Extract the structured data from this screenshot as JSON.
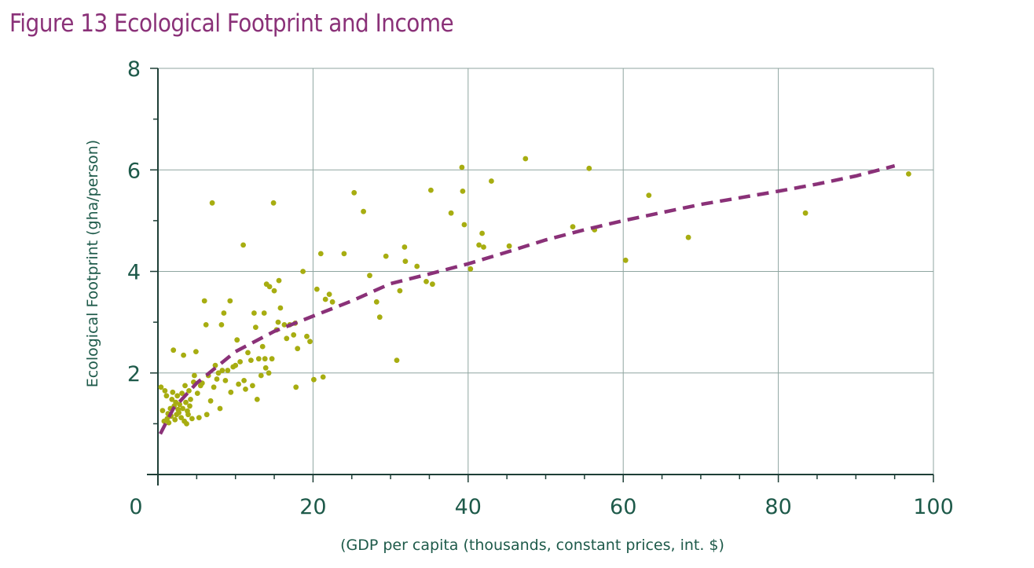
{
  "figure": {
    "title": "Figure 13 Ecological Footprint and Income"
  },
  "colors": {
    "title": "#8a3178",
    "points": "#a7ad11",
    "trend": "#8a3178",
    "axis": "#1e3f37",
    "grid": "#8fa6a0",
    "text": "#1e5a4a"
  },
  "chart_data": {
    "type": "scatter",
    "title": "Figure 13 Ecological Footprint and Income",
    "xlabel": "(GDP per capita (thousands, constant prices, int. $)",
    "ylabel": "Ecological Footprint (gha/person)",
    "xlim": [
      0,
      100
    ],
    "ylim": [
      0,
      8
    ],
    "x_ticks": [
      0,
      20,
      40,
      60,
      80,
      100
    ],
    "y_ticks": [
      2,
      4,
      6,
      8
    ],
    "x_tick_labels": [
      "0",
      "20",
      "40",
      "60",
      "80",
      "100"
    ],
    "y_tick_labels": [
      "2",
      "4",
      "6",
      "8"
    ],
    "grid": true,
    "points": [
      [
        0.4,
        1.72
      ],
      [
        0.6,
        1.26
      ],
      [
        0.8,
        1.05
      ],
      [
        0.9,
        1.65
      ],
      [
        1.1,
        1.55
      ],
      [
        1.2,
        1.1
      ],
      [
        1.3,
        1.2
      ],
      [
        1.4,
        1.02
      ],
      [
        1.6,
        1.3
      ],
      [
        1.7,
        1.15
      ],
      [
        1.8,
        1.48
      ],
      [
        1.9,
        1.62
      ],
      [
        2.0,
        2.45
      ],
      [
        2.1,
        1.35
      ],
      [
        2.2,
        1.08
      ],
      [
        2.3,
        1.42
      ],
      [
        2.4,
        1.18
      ],
      [
        2.5,
        1.55
      ],
      [
        2.6,
        1.28
      ],
      [
        2.7,
        1.22
      ],
      [
        2.8,
        1.38
      ],
      [
        3.0,
        1.12
      ],
      [
        3.1,
        1.6
      ],
      [
        3.2,
        1.3
      ],
      [
        3.3,
        2.35
      ],
      [
        3.4,
        1.05
      ],
      [
        3.5,
        1.75
      ],
      [
        3.6,
        1.42
      ],
      [
        3.7,
        1.0
      ],
      [
        3.8,
        1.25
      ],
      [
        3.9,
        1.18
      ],
      [
        4.0,
        1.65
      ],
      [
        4.1,
        1.35
      ],
      [
        4.2,
        1.48
      ],
      [
        4.4,
        1.1
      ],
      [
        4.6,
        1.82
      ],
      [
        4.7,
        1.95
      ],
      [
        4.9,
        2.42
      ],
      [
        5.1,
        1.6
      ],
      [
        5.3,
        1.12
      ],
      [
        5.5,
        1.75
      ],
      [
        5.7,
        1.8
      ],
      [
        6.0,
        3.42
      ],
      [
        6.2,
        2.95
      ],
      [
        6.3,
        1.18
      ],
      [
        6.5,
        1.95
      ],
      [
        6.8,
        1.45
      ],
      [
        7.0,
        5.35
      ],
      [
        7.2,
        1.72
      ],
      [
        7.4,
        2.15
      ],
      [
        7.6,
        1.88
      ],
      [
        7.8,
        2.0
      ],
      [
        8.0,
        1.3
      ],
      [
        8.2,
        2.95
      ],
      [
        8.3,
        2.05
      ],
      [
        8.5,
        3.18
      ],
      [
        8.7,
        1.85
      ],
      [
        9.0,
        2.05
      ],
      [
        9.3,
        3.42
      ],
      [
        9.4,
        1.62
      ],
      [
        9.7,
        2.12
      ],
      [
        10.0,
        2.15
      ],
      [
        10.2,
        2.65
      ],
      [
        10.4,
        1.78
      ],
      [
        10.6,
        2.22
      ],
      [
        11.0,
        4.52
      ],
      [
        11.1,
        1.85
      ],
      [
        11.3,
        1.68
      ],
      [
        11.6,
        2.4
      ],
      [
        12.0,
        2.25
      ],
      [
        12.2,
        1.75
      ],
      [
        12.4,
        3.18
      ],
      [
        12.6,
        2.9
      ],
      [
        12.8,
        1.48
      ],
      [
        13.0,
        2.28
      ],
      [
        13.3,
        1.95
      ],
      [
        13.5,
        2.52
      ],
      [
        13.7,
        3.18
      ],
      [
        13.8,
        2.28
      ],
      [
        13.9,
        2.1
      ],
      [
        14.0,
        3.75
      ],
      [
        14.3,
        2.0
      ],
      [
        14.4,
        3.7
      ],
      [
        14.7,
        2.28
      ],
      [
        14.9,
        5.35
      ],
      [
        15.0,
        3.62
      ],
      [
        15.3,
        2.85
      ],
      [
        15.5,
        3.0
      ],
      [
        15.6,
        3.82
      ],
      [
        15.8,
        3.28
      ],
      [
        16.3,
        2.95
      ],
      [
        16.6,
        2.68
      ],
      [
        17.0,
        2.95
      ],
      [
        17.5,
        2.75
      ],
      [
        17.7,
        2.98
      ],
      [
        17.8,
        1.72
      ],
      [
        18.0,
        2.48
      ],
      [
        18.7,
        4.0
      ],
      [
        19.2,
        2.72
      ],
      [
        19.6,
        2.62
      ],
      [
        20.1,
        1.87
      ],
      [
        20.5,
        3.65
      ],
      [
        21.0,
        4.35
      ],
      [
        21.3,
        1.92
      ],
      [
        21.6,
        3.45
      ],
      [
        22.1,
        3.55
      ],
      [
        22.5,
        3.4
      ],
      [
        24.0,
        4.35
      ],
      [
        25.3,
        5.55
      ],
      [
        26.5,
        5.18
      ],
      [
        27.3,
        3.92
      ],
      [
        28.2,
        3.4
      ],
      [
        28.6,
        3.1
      ],
      [
        29.4,
        4.3
      ],
      [
        30.8,
        2.25
      ],
      [
        31.2,
        3.62
      ],
      [
        31.8,
        4.48
      ],
      [
        31.9,
        4.2
      ],
      [
        33.4,
        4.1
      ],
      [
        34.6,
        3.8
      ],
      [
        35.2,
        5.6
      ],
      [
        35.4,
        3.75
      ],
      [
        37.8,
        5.15
      ],
      [
        39.2,
        6.05
      ],
      [
        39.3,
        5.58
      ],
      [
        39.5,
        4.92
      ],
      [
        40.3,
        4.05
      ],
      [
        41.4,
        4.52
      ],
      [
        41.8,
        4.75
      ],
      [
        42.0,
        4.48
      ],
      [
        43.0,
        5.78
      ],
      [
        45.3,
        4.5
      ],
      [
        47.4,
        6.22
      ],
      [
        53.5,
        4.88
      ],
      [
        55.6,
        6.03
      ],
      [
        56.3,
        4.82
      ],
      [
        60.3,
        4.22
      ],
      [
        63.3,
        5.5
      ],
      [
        68.4,
        4.67
      ],
      [
        83.5,
        5.15
      ],
      [
        96.8,
        5.92
      ]
    ],
    "trend": {
      "style": "dashed",
      "points": [
        [
          0.3,
          0.8
        ],
        [
          2,
          1.3
        ],
        [
          5,
          1.8
        ],
        [
          10,
          2.42
        ],
        [
          15,
          2.82
        ],
        [
          20,
          3.12
        ],
        [
          25,
          3.42
        ],
        [
          30,
          3.76
        ],
        [
          35,
          3.95
        ],
        [
          40,
          4.15
        ],
        [
          45,
          4.38
        ],
        [
          50,
          4.62
        ],
        [
          55,
          4.82
        ],
        [
          60,
          5.0
        ],
        [
          65,
          5.16
        ],
        [
          70,
          5.32
        ],
        [
          75,
          5.45
        ],
        [
          80,
          5.58
        ],
        [
          85,
          5.72
        ],
        [
          90,
          5.88
        ],
        [
          95,
          6.08
        ]
      ]
    }
  }
}
